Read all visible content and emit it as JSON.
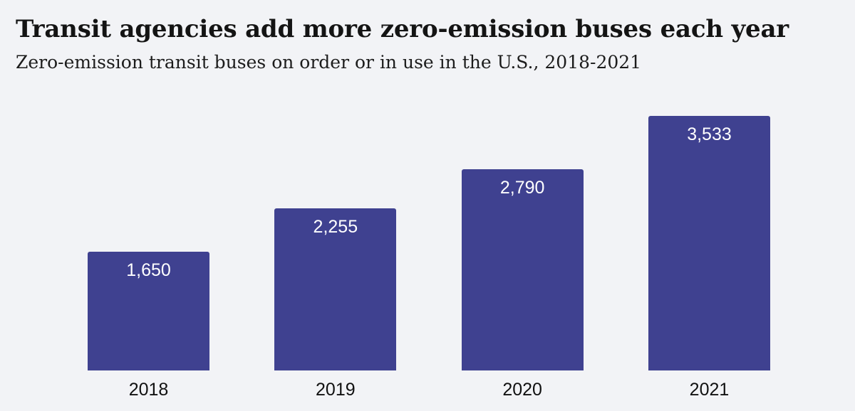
{
  "header": {
    "title": "Transit agencies add more zero-emission buses each year",
    "subtitle": "Zero-emission transit buses on order or in use in the U.S., 2018-2021"
  },
  "chart_data": {
    "type": "bar",
    "title": "Transit agencies add more zero-emission buses each year",
    "subtitle": "Zero-emission transit buses on order or in use in the U.S., 2018-2021",
    "categories": [
      "2018",
      "2019",
      "2020",
      "2021"
    ],
    "values": [
      1650,
      2255,
      2790,
      3533
    ],
    "value_labels": [
      "1,650",
      "2,255",
      "2,790",
      "3,533"
    ],
    "xlabel": "",
    "ylabel": "",
    "ylim": [
      0,
      3533
    ],
    "grid": false,
    "legend": false,
    "value_label_position": "inside-top",
    "colors": {
      "bar": "#3f4190",
      "value_label": "#ffffff",
      "background": "#f2f3f6",
      "title_text": "#141414",
      "subtitle_text": "#1c1c1c",
      "axis_label_text": "#111111"
    }
  }
}
